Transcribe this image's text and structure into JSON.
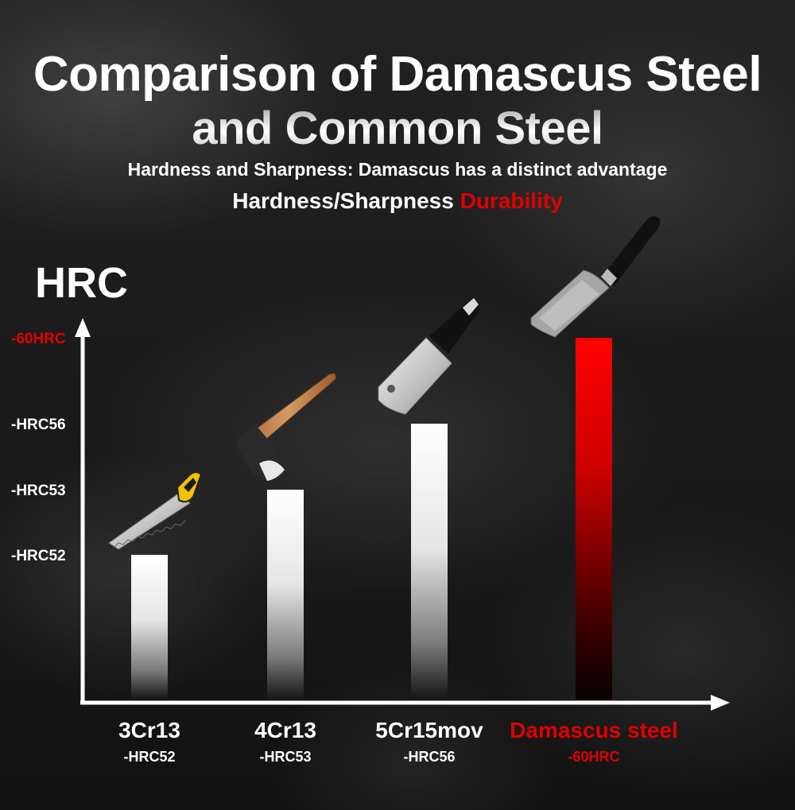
{
  "header": {
    "title_line1": "Comparison of Damascus Steel",
    "title_line2": "and Common Steel",
    "subtitle": "Hardness and Sharpness: Damascus has a distinct advantage",
    "subtitle2_white": "Hardness/Sharpness",
    "subtitle2_red": "Durability"
  },
  "colors": {
    "accent_red": "#e00000",
    "text_white": "#ffffff",
    "axis_white": "#ffffff"
  },
  "chart_data": {
    "type": "bar",
    "title": "Comparison of Damascus Steel and Common Steel",
    "ylabel": "HRC",
    "xlabel": "",
    "categories": [
      "3Cr13",
      "4Cr13",
      "5Cr15mov",
      "Damascus steel"
    ],
    "category_sublabels": [
      "-HRC52",
      "-HRC53",
      "-HRC56",
      "-60HRC"
    ],
    "values": [
      52,
      53,
      56,
      60
    ],
    "yticks": [
      {
        "value": 52,
        "label": "-HRC52",
        "highlight": false
      },
      {
        "value": 53,
        "label": "-HRC53",
        "highlight": false
      },
      {
        "value": 56,
        "label": "-HRC56",
        "highlight": false
      },
      {
        "value": 60,
        "label": "-60HRC",
        "highlight": true
      }
    ],
    "highlight_category": "Damascus steel",
    "illustrations": [
      "hand-saw",
      "axe",
      "cleaver",
      "nakiri-knife"
    ],
    "grid": false,
    "legend": "none"
  }
}
